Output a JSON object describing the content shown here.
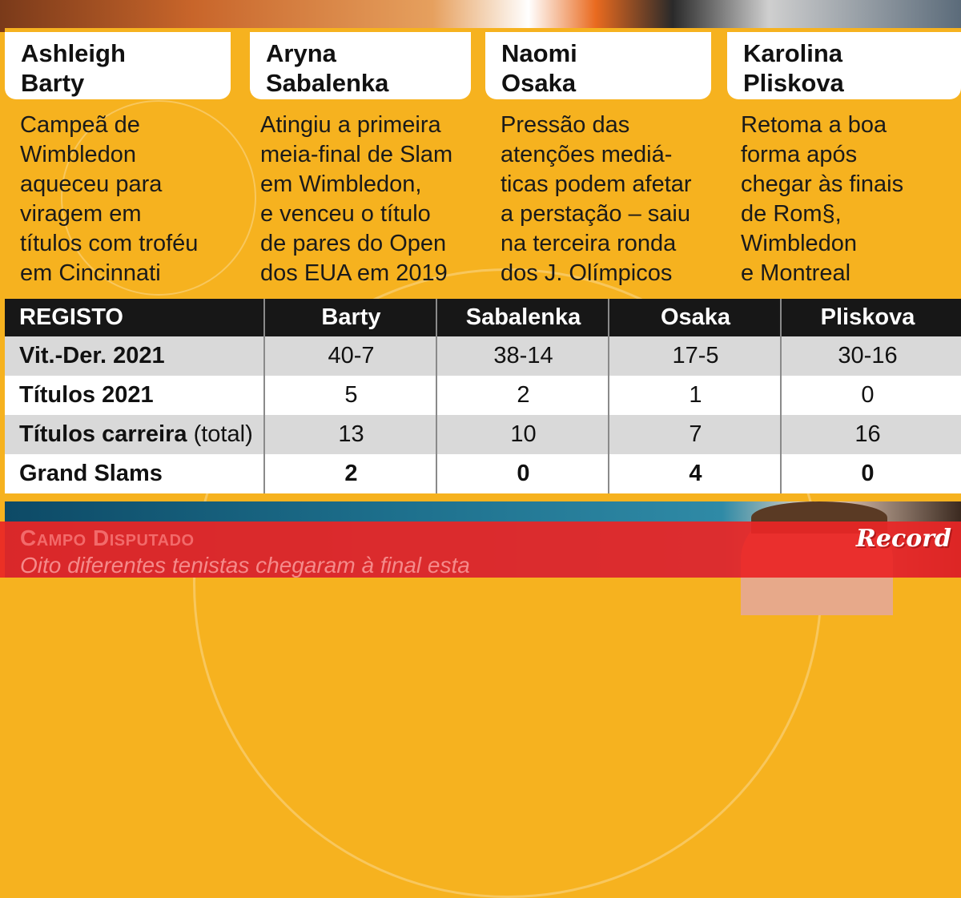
{
  "players": [
    {
      "first": "Ashleigh",
      "last": "Barty",
      "desc": [
        "Campeã de",
        "Wimbledon",
        "aqueceu para",
        "viragem em",
        "títulos com troféu",
        "em Cincinnati"
      ]
    },
    {
      "first": "Aryna",
      "last": "Sabalenka",
      "desc": [
        "Atingiu a primeira",
        "meia-final de Slam",
        "em Wimbledon,",
        "e venceu o título",
        "de pares do Open",
        "dos EUA em 2019"
      ]
    },
    {
      "first": "Naomi",
      "last": "Osaka",
      "desc": [
        "Pressão das",
        "atenções mediá-",
        "ticas podem afetar",
        "a perstação – saiu",
        "na terceira ronda",
        "dos J. Olímpicos"
      ]
    },
    {
      "first": "Karolina",
      "last": "Pliskova",
      "desc": [
        "Retoma a boa",
        "forma após",
        "chegar às finais",
        "de Rom§,",
        "Wimbledon",
        "e Montreal"
      ]
    }
  ],
  "table": {
    "headers": [
      "REGISTO",
      "Barty",
      "Sabalenka",
      "Osaka",
      "Pliskova"
    ],
    "rows": [
      {
        "label": "Vit.-Der. 2021",
        "note": "",
        "values": [
          "40-7",
          "38-14",
          "17-5",
          "30-16"
        ]
      },
      {
        "label": "Títulos 2021",
        "note": "",
        "values": [
          "5",
          "2",
          "1",
          "0"
        ]
      },
      {
        "label": "Títulos carreira",
        "note": "(total)",
        "values": [
          "13",
          "10",
          "7",
          "16"
        ]
      },
      {
        "label": "Grand Slams",
        "note": "",
        "values": [
          "2",
          "0",
          "4",
          "0"
        ]
      }
    ]
  },
  "footer": {
    "heading": "Campo Disputado",
    "subtitle": "Oito diferentes tenistas chegaram à final esta"
  },
  "logo": "Record",
  "colors": {
    "accent": "#f6b21f",
    "header": "#171717",
    "banner": "#e92626"
  }
}
